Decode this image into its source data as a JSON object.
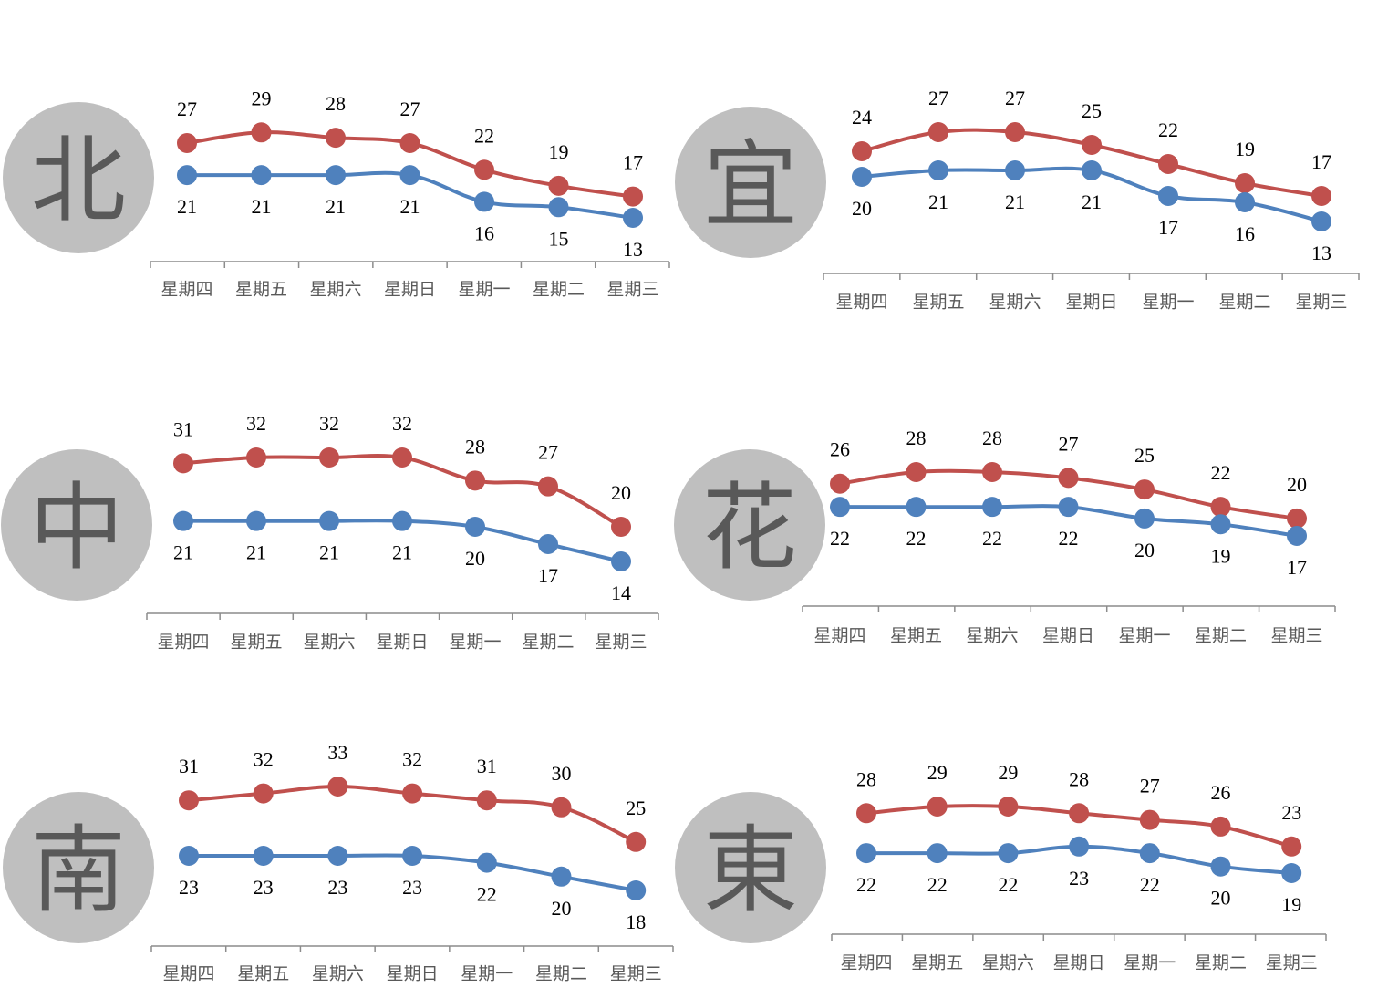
{
  "colors": {
    "high": "#c0504d",
    "low": "#4f81bd",
    "axis": "#8c8c8c",
    "badge": "#bfbfbf",
    "badge_text": "#595959"
  },
  "chart_data": [
    {
      "type": "line",
      "badge": "北",
      "categories": [
        "星期四",
        "星期五",
        "星期六",
        "星期日",
        "星期一",
        "星期二",
        "星期三"
      ],
      "series": [
        {
          "values": [
            27,
            29,
            28,
            27,
            22,
            19,
            17
          ]
        },
        {
          "values": [
            21,
            21,
            21,
            21,
            16,
            15,
            13
          ]
        }
      ]
    },
    {
      "type": "line",
      "badge": "宜",
      "categories": [
        "星期四",
        "星期五",
        "星期六",
        "星期日",
        "星期一",
        "星期二",
        "星期三"
      ],
      "series": [
        {
          "values": [
            24,
            27,
            27,
            25,
            22,
            19,
            17
          ]
        },
        {
          "values": [
            20,
            21,
            21,
            21,
            17,
            16,
            13
          ]
        }
      ]
    },
    {
      "type": "line",
      "badge": "中",
      "categories": [
        "星期四",
        "星期五",
        "星期六",
        "星期日",
        "星期一",
        "星期二",
        "星期三"
      ],
      "series": [
        {
          "values": [
            31,
            32,
            32,
            32,
            28,
            27,
            20
          ]
        },
        {
          "values": [
            21,
            21,
            21,
            21,
            20,
            17,
            14
          ]
        }
      ]
    },
    {
      "type": "line",
      "badge": "花",
      "categories": [
        "星期四",
        "星期五",
        "星期六",
        "星期日",
        "星期一",
        "星期二",
        "星期三"
      ],
      "series": [
        {
          "values": [
            26,
            28,
            28,
            27,
            25,
            22,
            20
          ]
        },
        {
          "values": [
            22,
            22,
            22,
            22,
            20,
            19,
            17
          ]
        }
      ]
    },
    {
      "type": "line",
      "badge": "南",
      "categories": [
        "星期四",
        "星期五",
        "星期六",
        "星期日",
        "星期一",
        "星期二",
        "星期三"
      ],
      "series": [
        {
          "values": [
            31,
            32,
            33,
            32,
            31,
            30,
            25
          ]
        },
        {
          "values": [
            23,
            23,
            23,
            23,
            22,
            20,
            18
          ]
        }
      ]
    },
    {
      "type": "line",
      "badge": "東",
      "categories": [
        "星期四",
        "星期五",
        "星期六",
        "星期日",
        "星期一",
        "星期二",
        "星期三"
      ],
      "series": [
        {
          "values": [
            28,
            29,
            29,
            28,
            27,
            26,
            23
          ]
        },
        {
          "values": [
            22,
            22,
            22,
            23,
            22,
            20,
            19
          ]
        }
      ]
    }
  ]
}
